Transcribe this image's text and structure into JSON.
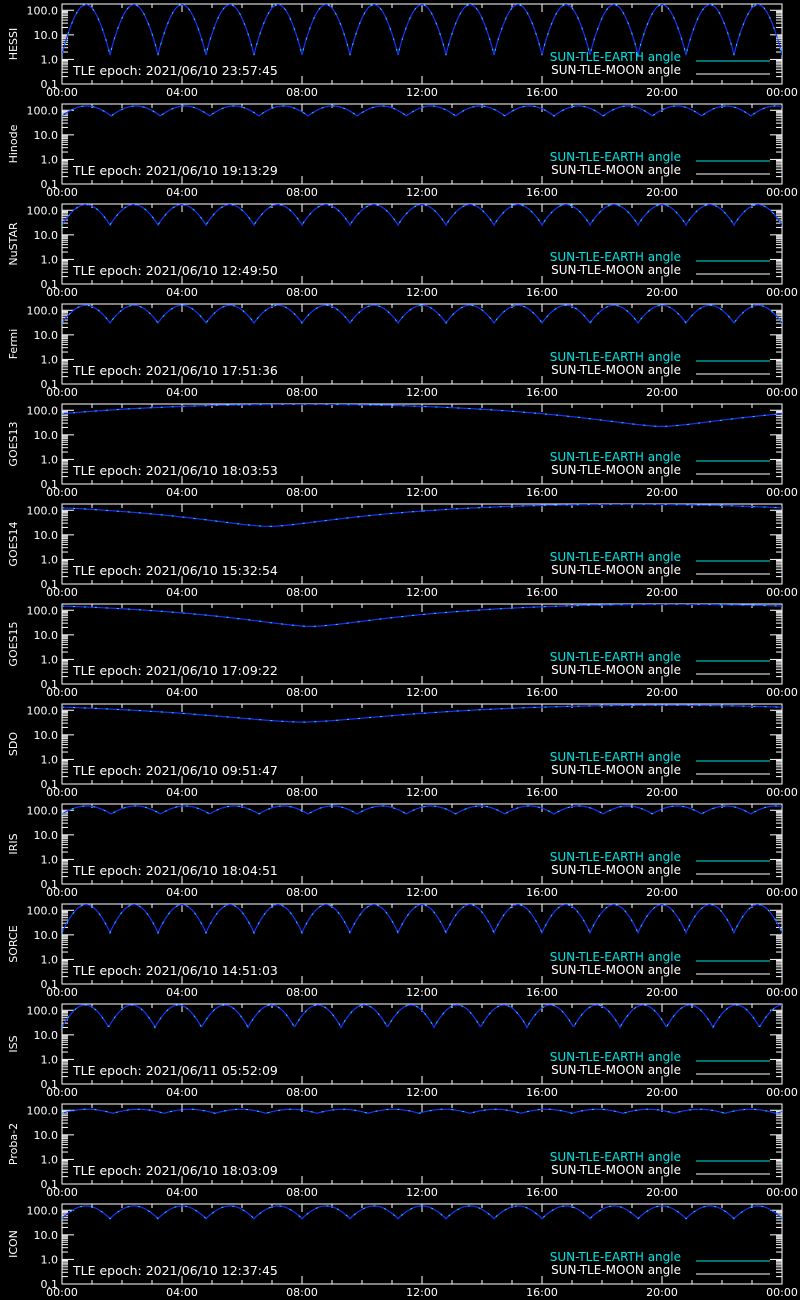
{
  "colors": {
    "background": "#000000",
    "axes": "#ffffff",
    "earth_angle": "#00e5e5",
    "moon_angle": "#ffffff",
    "model_curve": "#1f2fff"
  },
  "chart_data": {
    "type": "line",
    "x_ticks": [
      "00:00",
      "04:00",
      "08:00",
      "12:00",
      "16:00",
      "20:00",
      "00:00"
    ],
    "x_range_hours": [
      0,
      24
    ],
    "y_scale": "log",
    "y_range": [
      0.1,
      180
    ],
    "y_ticks": [
      "100.0",
      "10.0",
      "1.0",
      "0.1"
    ],
    "legend": {
      "placement": "bottom-right",
      "earth": "SUN-TLE-EARTH angle",
      "moon": "SUN-TLE-MOON angle"
    },
    "panels": [
      {
        "label": "HESSI",
        "epoch": "TLE epoch: 2021/06/10 23:57:45",
        "curve": "orbit",
        "period_h": 1.6,
        "ymin": 1.5,
        "ymax": 170
      },
      {
        "label": "Hinode",
        "epoch": "TLE epoch: 2021/06/10 19:13:29",
        "curve": "orbit",
        "period_h": 1.64,
        "ymin": 58,
        "ymax": 150
      },
      {
        "label": "NuSTAR",
        "epoch": "TLE epoch: 2021/06/10 12:49:50",
        "curve": "orbit",
        "period_h": 1.6,
        "ymin": 25,
        "ymax": 170
      },
      {
        "label": "Fermi",
        "epoch": "TLE epoch: 2021/06/10 17:51:36",
        "curve": "orbit",
        "period_h": 1.6,
        "ymin": 30,
        "ymax": 160
      },
      {
        "label": "GOES13",
        "epoch": "TLE epoch: 2021/06/10 18:03:53",
        "curve": "geo",
        "t_min_h": 20.0,
        "ymin": 22,
        "ymax": 175
      },
      {
        "label": "GOES14",
        "epoch": "TLE epoch: 2021/06/10 15:32:54",
        "curve": "geo",
        "t_min_h": 6.9,
        "ymin": 22,
        "ymax": 175
      },
      {
        "label": "GOES15",
        "epoch": "TLE epoch: 2021/06/10 17:09:22",
        "curve": "geo",
        "t_min_h": 8.3,
        "ymin": 22,
        "ymax": 175
      },
      {
        "label": "SDO",
        "epoch": "TLE epoch: 2021/06/10 09:51:47",
        "curve": "geo",
        "t_min_h": 8.0,
        "ymin": 33,
        "ymax": 160
      },
      {
        "label": "IRIS",
        "epoch": "TLE epoch: 2021/06/10 18:04:51",
        "curve": "orbit",
        "period_h": 1.64,
        "ymin": 70,
        "ymax": 150
      },
      {
        "label": "SORCE",
        "epoch": "TLE epoch: 2021/06/10 14:51:03",
        "curve": "orbit",
        "period_h": 1.6,
        "ymin": 12,
        "ymax": 170
      },
      {
        "label": "ISS",
        "epoch": "TLE epoch: 2021/06/11 05:52:09",
        "curve": "orbit",
        "period_h": 1.55,
        "ymin": 20,
        "ymax": 165
      },
      {
        "label": "Proba-2",
        "epoch": "TLE epoch: 2021/06/10 18:03:09",
        "curve": "orbit",
        "period_h": 1.7,
        "ymin": 75,
        "ymax": 110
      },
      {
        "label": "ICON",
        "epoch": "TLE epoch: 2021/06/10 12:37:45",
        "curve": "orbit",
        "period_h": 1.6,
        "ymin": 45,
        "ymax": 150
      }
    ]
  }
}
